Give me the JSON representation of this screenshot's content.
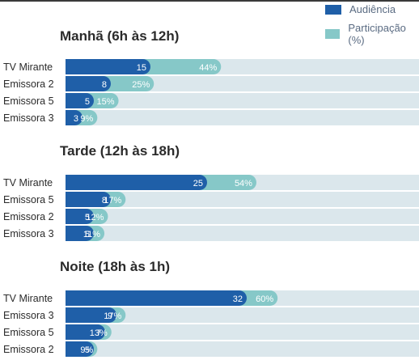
{
  "legend": {
    "audiencia": "Audiência",
    "participacao": "Participação (%)"
  },
  "colors": {
    "audiencia": "#1f5fa8",
    "participacao": "#86c8c8",
    "track": "#dbe7ec"
  },
  "chart_data": [
    {
      "type": "bar",
      "title": "Manhã (6h às 12h)",
      "categories": [
        "TV Mirante",
        "Emissora 2",
        "Emissora 5",
        "Emissora 3"
      ],
      "series": [
        {
          "name": "Audiência",
          "values": [
            15,
            8,
            5,
            3
          ]
        },
        {
          "name": "Participação (%)",
          "values": [
            44,
            25,
            15,
            9
          ]
        }
      ]
    },
    {
      "type": "bar",
      "title": "Tarde (12h às 18h)",
      "categories": [
        "TV Mirante",
        "Emissora 5",
        "Emissora 2",
        "Emissora 3"
      ],
      "series": [
        {
          "name": "Audiência",
          "values": [
            25,
            8,
            5,
            5
          ]
        },
        {
          "name": "Participação (%)",
          "values": [
            54,
            17,
            12,
            11
          ]
        }
      ]
    },
    {
      "type": "bar",
      "title": "Noite (18h às 1h)",
      "categories": [
        "TV Mirante",
        "Emissora 3",
        "Emissora 5",
        "Emissora 2"
      ],
      "series": [
        {
          "name": "Audiência",
          "values": [
            32,
            9,
            7,
            5
          ]
        },
        {
          "name": "Participação (%)",
          "values": [
            60,
            17,
            13,
            9
          ]
        }
      ]
    }
  ]
}
